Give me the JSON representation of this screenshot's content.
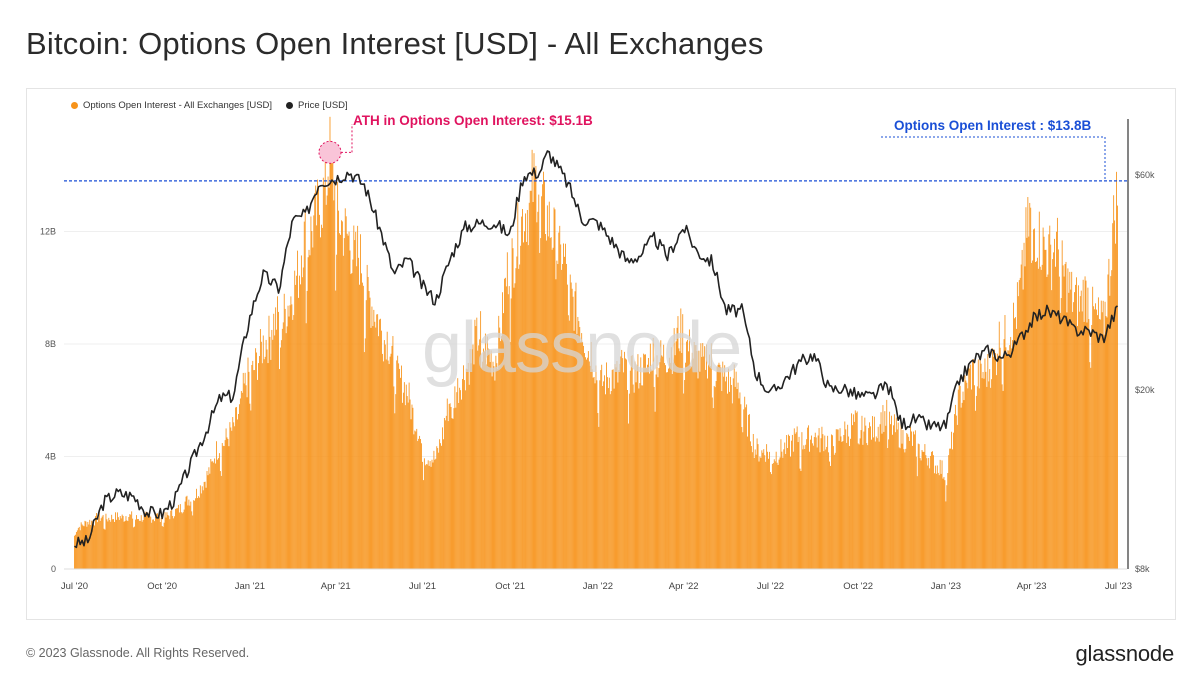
{
  "title": "Bitcoin: Options Open Interest [USD] - All Exchanges",
  "footer": "© 2023 Glassnode. All Rights Reserved.",
  "brand": "glassnode",
  "watermark": "glassnode",
  "colors": {
    "bars": "#f7931a",
    "price": "#222222",
    "ath": "#e0135f",
    "current": "#1a4fd6"
  },
  "chart_data": {
    "type": "bar",
    "legend": [
      "Options Open Interest - All Exchanges [USD]",
      "Price [USD]"
    ],
    "legend_placement": "top-left",
    "x_ticks": [
      "Jul '20",
      "Oct '20",
      "Jan '21",
      "Apr '21",
      "Jul '21",
      "Oct '21",
      "Jan '22",
      "Apr '22",
      "Jul '22",
      "Oct '22",
      "Jan '23",
      "Apr '23",
      "Jul '23"
    ],
    "y_left_ticks": [
      "0",
      "4B",
      "8B",
      "12B"
    ],
    "y_left_values": [
      0,
      4,
      8,
      12
    ],
    "y_left_range": [
      0,
      16
    ],
    "y_right_ticks": [
      "$8k",
      "$20k",
      "$60k"
    ],
    "y_right_values": [
      8000,
      20000,
      60000
    ],
    "y_right_scale": "log",
    "annotations": {
      "ath": "ATH in Options Open Interest: $15.1B",
      "current": "Options Open Interest : $13.8B",
      "reference_level_billion": 13.8
    },
    "series": [
      {
        "name": "Options Open Interest - All Exchanges [USD]",
        "unit": "USD billions",
        "x": [
          "2020-07-01",
          "2020-07-15",
          "2020-08-01",
          "2020-08-15",
          "2020-09-01",
          "2020-09-15",
          "2020-10-01",
          "2020-10-15",
          "2020-11-01",
          "2020-11-15",
          "2020-12-01",
          "2020-12-15",
          "2021-01-01",
          "2021-01-15",
          "2021-02-01",
          "2021-02-15",
          "2021-03-01",
          "2021-03-15",
          "2021-03-26",
          "2021-04-01",
          "2021-04-15",
          "2021-05-01",
          "2021-05-15",
          "2021-06-01",
          "2021-06-15",
          "2021-07-01",
          "2021-07-15",
          "2021-08-01",
          "2021-08-15",
          "2021-09-01",
          "2021-09-15",
          "2021-10-01",
          "2021-10-15",
          "2021-11-01",
          "2021-11-15",
          "2021-12-01",
          "2021-12-15",
          "2022-01-01",
          "2022-01-15",
          "2022-02-01",
          "2022-02-15",
          "2022-03-01",
          "2022-03-15",
          "2022-04-01",
          "2022-04-15",
          "2022-05-01",
          "2022-05-15",
          "2022-06-01",
          "2022-06-15",
          "2022-07-01",
          "2022-07-15",
          "2022-08-01",
          "2022-08-15",
          "2022-09-01",
          "2022-09-15",
          "2022-10-01",
          "2022-10-15",
          "2022-11-01",
          "2022-11-15",
          "2022-12-01",
          "2022-12-15",
          "2023-01-01",
          "2023-01-15",
          "2023-02-01",
          "2023-02-15",
          "2023-03-01",
          "2023-03-15",
          "2023-04-01",
          "2023-04-15",
          "2023-05-01",
          "2023-05-15",
          "2023-06-01",
          "2023-06-15",
          "2023-06-30"
        ],
        "values": [
          1.5,
          1.8,
          1.9,
          2.0,
          1.9,
          2.0,
          1.9,
          2.2,
          2.6,
          3.4,
          4.6,
          5.4,
          7.2,
          8.6,
          9.2,
          10.6,
          12.3,
          13.8,
          15.1,
          13.6,
          12.6,
          10.8,
          9.6,
          7.6,
          6.8,
          4.4,
          4.2,
          6.4,
          7.6,
          8.7,
          7.9,
          11.4,
          13.6,
          14.2,
          12.8,
          10.7,
          9.3,
          7.0,
          7.4,
          7.3,
          7.6,
          7.9,
          8.2,
          8.7,
          8.0,
          7.6,
          7.3,
          6.4,
          4.6,
          4.2,
          4.6,
          4.8,
          5.1,
          4.6,
          5.2,
          5.3,
          5.3,
          5.6,
          5.1,
          4.6,
          4.3,
          3.4,
          6.6,
          7.3,
          7.6,
          8.6,
          9.6,
          13.2,
          12.2,
          11.6,
          10.3,
          9.9,
          9.3,
          13.8
        ]
      },
      {
        "name": "Price [USD]",
        "unit": "USD",
        "x": [
          "2020-07-01",
          "2020-07-15",
          "2020-08-01",
          "2020-08-15",
          "2020-09-01",
          "2020-09-15",
          "2020-10-01",
          "2020-10-15",
          "2020-11-01",
          "2020-11-15",
          "2020-12-01",
          "2020-12-15",
          "2021-01-01",
          "2021-01-15",
          "2021-02-01",
          "2021-02-15",
          "2021-03-01",
          "2021-03-15",
          "2021-04-01",
          "2021-04-15",
          "2021-05-01",
          "2021-05-15",
          "2021-06-01",
          "2021-06-15",
          "2021-07-01",
          "2021-07-15",
          "2021-08-01",
          "2021-08-15",
          "2021-09-01",
          "2021-09-15",
          "2021-10-01",
          "2021-10-15",
          "2021-11-01",
          "2021-11-10",
          "2021-12-01",
          "2021-12-15",
          "2022-01-01",
          "2022-01-15",
          "2022-02-01",
          "2022-02-15",
          "2022-03-01",
          "2022-03-15",
          "2022-04-01",
          "2022-04-15",
          "2022-05-01",
          "2022-05-15",
          "2022-06-01",
          "2022-06-15",
          "2022-07-01",
          "2022-07-15",
          "2022-08-01",
          "2022-08-15",
          "2022-09-01",
          "2022-09-15",
          "2022-10-01",
          "2022-10-15",
          "2022-11-01",
          "2022-11-15",
          "2022-12-01",
          "2022-12-15",
          "2023-01-01",
          "2023-01-15",
          "2023-02-01",
          "2023-02-15",
          "2023-03-01",
          "2023-03-15",
          "2023-04-01",
          "2023-04-15",
          "2023-05-01",
          "2023-05-15",
          "2023-06-01",
          "2023-06-15",
          "2023-06-30"
        ],
        "values": [
          9100,
          9200,
          11300,
          11800,
          11600,
          10700,
          10600,
          11500,
          13800,
          16000,
          19200,
          19400,
          29000,
          36000,
          33500,
          47500,
          49000,
          58000,
          59000,
          61000,
          57000,
          47000,
          36000,
          39000,
          34000,
          31500,
          40000,
          46000,
          47000,
          47000,
          44000,
          60000,
          61000,
          67500,
          57000,
          48000,
          47000,
          43000,
          38500,
          40000,
          43500,
          39500,
          46000,
          40500,
          38500,
          30000,
          30000,
          22000,
          19500,
          21000,
          23000,
          24000,
          20000,
          20200,
          19400,
          19300,
          20500,
          16800,
          17200,
          16600,
          16600,
          21000,
          23500,
          24500,
          23500,
          25000,
          28500,
          30000,
          29000,
          27200,
          27000,
          26000,
          30300
        ]
      }
    ]
  }
}
